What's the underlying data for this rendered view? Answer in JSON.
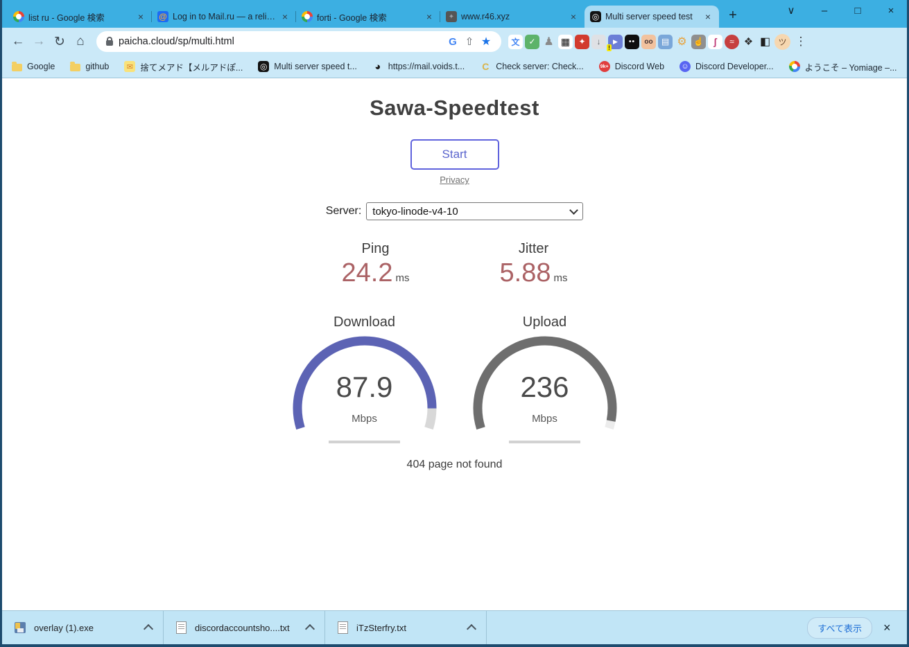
{
  "glyphs": {
    "close": "×",
    "plus": "+",
    "back": "←",
    "forward": "→",
    "reload": "↻",
    "home": "⌂",
    "share": "⇧",
    "star": "★",
    "overflow": "»",
    "menu": "⋮",
    "minimize": "–",
    "maximize": "□",
    "chevron_down": "∨",
    "google_g": "G",
    "speed_favicon": "◎",
    "mailru_at": "@",
    "dark_site": "✦"
  },
  "browser": {
    "tabs": [
      {
        "title": "list ru - Google 検索",
        "favicon": "google"
      },
      {
        "title": "Log in to Mail.ru — a reliab",
        "favicon": "mailru"
      },
      {
        "title": "forti - Google 検索",
        "favicon": "google"
      },
      {
        "title": "www.r46.xyz",
        "favicon": "dark-globe"
      },
      {
        "title": "Multi server speed test",
        "favicon": "speedtest",
        "active": true
      }
    ],
    "url": "paicha.cloud/sp/multi.html",
    "extensions": [
      {
        "name": "translate",
        "glyph": "文"
      },
      {
        "name": "adguard",
        "glyph": "✓"
      },
      {
        "name": "anonymous-person",
        "glyph": "♟"
      },
      {
        "name": "qr-scanner",
        "glyph": "▦"
      },
      {
        "name": "magic-wand",
        "glyph": "✦"
      },
      {
        "name": "video-downloader",
        "glyph": "↓"
      },
      {
        "name": "discord-tool",
        "glyph": "▶",
        "badge": "!"
      },
      {
        "name": "dark-mask",
        "glyph": "••"
      },
      {
        "name": "avatar-face",
        "glyph": "oo"
      },
      {
        "name": "robot",
        "glyph": "▤"
      },
      {
        "name": "gears",
        "glyph": "⚙"
      },
      {
        "name": "touch-hand",
        "glyph": "☝"
      },
      {
        "name": "stripe-s",
        "glyph": "ʃ"
      },
      {
        "name": "vpn",
        "glyph": "≈"
      },
      {
        "name": "extensions-puzzle",
        "glyph": "❖"
      },
      {
        "name": "reading-mode",
        "glyph": "◧"
      },
      {
        "name": "profile-avatar",
        "glyph": "ツ"
      }
    ],
    "bookmarks": [
      {
        "label": "Google",
        "icon": "folder"
      },
      {
        "label": "github",
        "icon": "folder"
      },
      {
        "label": "捨てメアド【メルアドぽ...",
        "icon": "mail",
        "glyph": "✉"
      },
      {
        "label": "Multi server speed t...",
        "icon": "speed",
        "glyph": "◎"
      },
      {
        "label": "https://mail.voids.t...",
        "icon": "globe",
        "glyph": "◕"
      },
      {
        "label": "Check server: Check...",
        "icon": "c",
        "glyph": "C"
      },
      {
        "label": "Discord Web",
        "icon": "9k",
        "glyph": "9k+"
      },
      {
        "label": "Discord Developer...",
        "icon": "discord",
        "glyph": "☺"
      },
      {
        "label": "ようこそ – Yomiage –...",
        "icon": "gcloud",
        "glyph": ""
      }
    ]
  },
  "page": {
    "title": "Sawa-Speedtest",
    "start_button": "Start",
    "privacy_link": "Privacy",
    "server_label": "Server:",
    "server_selected": "tokyo-linode-v4-10",
    "metrics": [
      {
        "label": "Ping",
        "value": "24.2",
        "unit": "ms"
      },
      {
        "label": "Jitter",
        "value": "5.88",
        "unit": "ms"
      }
    ],
    "gauges": [
      {
        "label": "Download",
        "value": "87.9",
        "unit": "Mbps",
        "fraction": 0.92,
        "color": "#5c63b4",
        "rest_color": "#d8d8d8"
      },
      {
        "label": "Upload",
        "value": "236",
        "unit": "Mbps",
        "fraction": 0.97,
        "color": "#6e6e6e",
        "rest_color": "#ececec"
      }
    ],
    "footer_text": "404 page not found"
  },
  "downloads_bar": {
    "items": [
      {
        "filename": "overlay (1).exe",
        "icon": "exe"
      },
      {
        "filename": "discordaccountsho....txt",
        "icon": "txt"
      },
      {
        "filename": "iTzSterfry.txt",
        "icon": "txt"
      }
    ],
    "show_all_label": "すべて表示"
  },
  "colors": {
    "frame": "#1d4b6e",
    "tabstrip": "#3cafe2",
    "active_tab": "#a7daf3",
    "toolbar": "#cbe9f8",
    "accent_button": "#5f62dd",
    "ping_value": "#ab6265",
    "download_gauge": "#5c63b4",
    "upload_gauge": "#6e6e6e"
  }
}
